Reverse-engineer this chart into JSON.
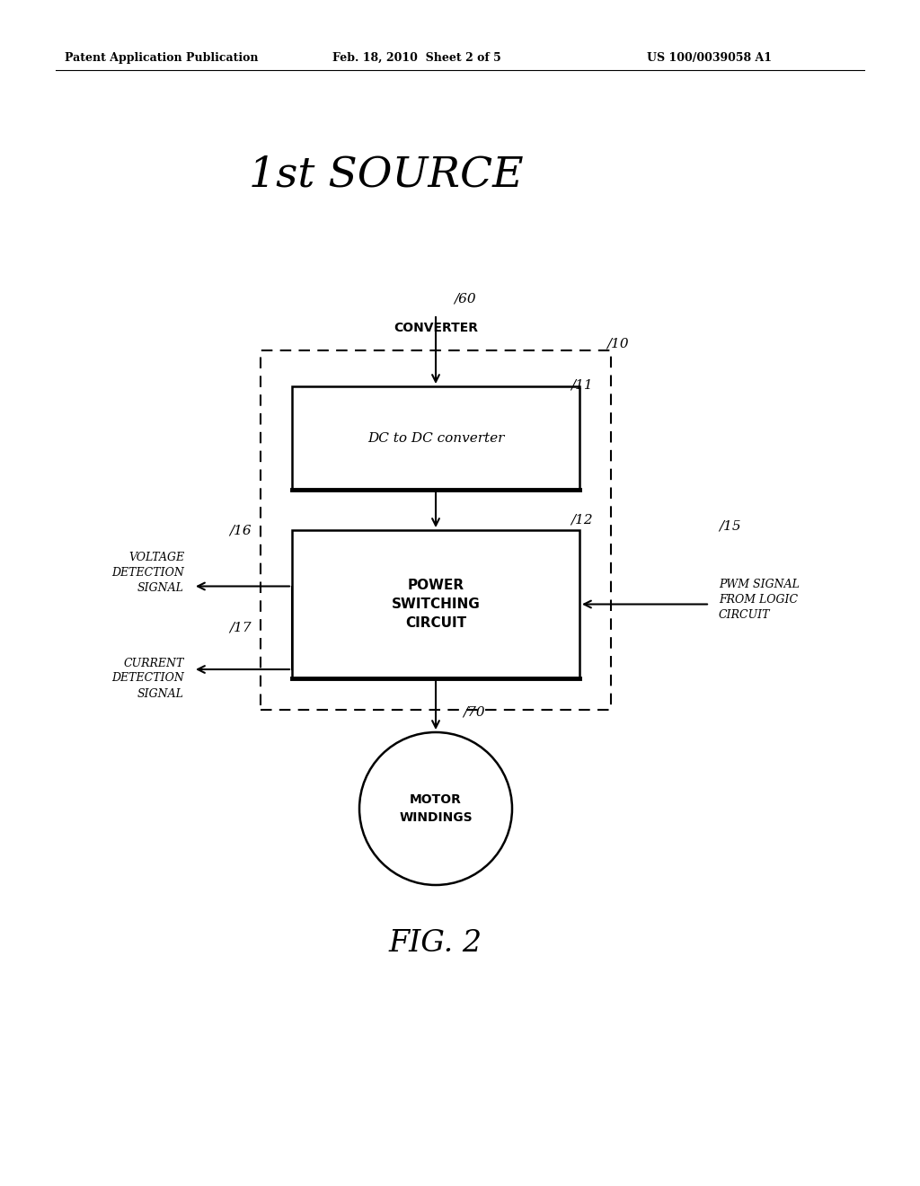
{
  "bg_color": "#ffffff",
  "header_left": "Patent Application Publication",
  "header_center": "Feb. 18, 2010  Sheet 2 of 5",
  "header_right": "US 100/0039058 A1",
  "title": "1st SOURCE",
  "fig_label": "FIG. 2",
  "box11_text": "DC to DC converter",
  "box12_text_lines": [
    "POWER",
    "SWITCHING",
    "CIRCUIT"
  ],
  "circle70_text_lines": [
    "MOTOR",
    "WINDINGS"
  ],
  "voltage_label_lines": [
    "VOLTAGE",
    "DETECTION",
    "SIGNAL"
  ],
  "current_label_lines": [
    "CURRENT",
    "DETECTION",
    "SIGNAL"
  ],
  "pwm_label_lines": [
    "PWM SIGNAL",
    "FROM LOGIC",
    "CIRCUIT"
  ],
  "label_60": "/60",
  "label_60_text": "CONVERTER",
  "label_10": "/10",
  "label_11": "/11",
  "label_12": "/12",
  "label_15": "/15",
  "label_16": "/16",
  "label_17": "/17",
  "label_70": "/70"
}
